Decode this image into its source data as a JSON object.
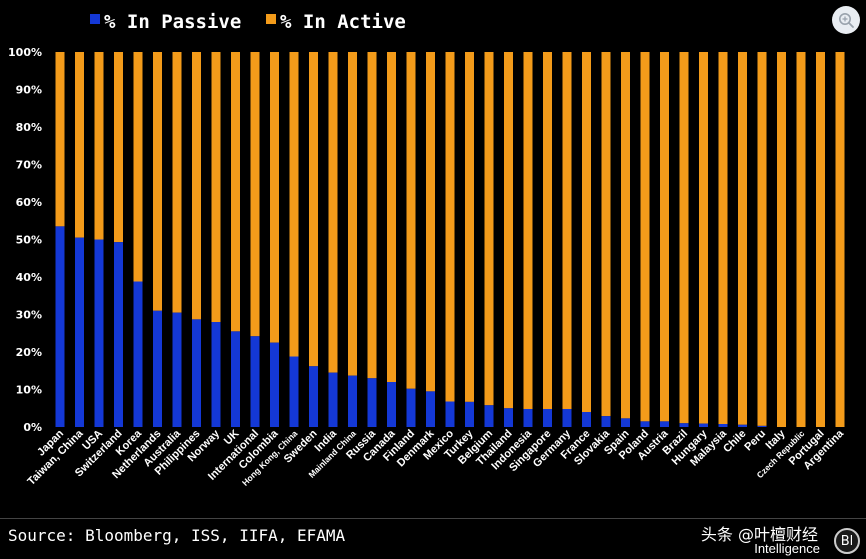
{
  "legend": {
    "passive_label": "% In Passive",
    "active_label": "% In Active"
  },
  "colors": {
    "passive": "#1438d6",
    "active": "#f39b1a",
    "background": "#000000"
  },
  "source": "Source: Bloomberg, ISS, IIFA, EFAMA",
  "watermark": "头条 @叶檀财经",
  "brand": "Intelligence",
  "brand_logo_letter": "Bl",
  "icon_names": [
    "search-zoom-icon"
  ],
  "chart_data": {
    "type": "bar",
    "stacked": true,
    "ylim": [
      0,
      100
    ],
    "yticks": [
      "0%",
      "10%",
      "20%",
      "30%",
      "40%",
      "50%",
      "60%",
      "70%",
      "80%",
      "90%",
      "100%"
    ],
    "categories": [
      "Japan",
      "Taiwan, China",
      "USA",
      "Switzerland",
      "Korea",
      "Netherlands",
      "Australia",
      "Philippines",
      "Norway",
      "UK",
      "International",
      "Colombia",
      "Hong Kong, China",
      "Sweden",
      "India",
      "Mainland China",
      "Russia",
      "Canada",
      "Finland",
      "Denmark",
      "Mexico",
      "Turkey",
      "Belgium",
      "Thailand",
      "Indonesia",
      "Singapore",
      "Germany",
      "France",
      "Slovakia",
      "Spain",
      "Poland",
      "Austria",
      "Brazil",
      "Hungary",
      "Malaysia",
      "Chile",
      "Peru",
      "Italy",
      "Czech Republic",
      "Portugal",
      "Argentina"
    ],
    "series": [
      {
        "name": "% In Passive",
        "values": [
          53.5,
          50.5,
          50,
          49.3,
          38.8,
          31,
          30.5,
          28.7,
          28,
          25.5,
          24.2,
          22.5,
          18.8,
          16.2,
          14.5,
          13.7,
          13,
          12,
          10.2,
          9.5,
          6.8,
          6.7,
          5.8,
          5,
          4.8,
          4.8,
          4.8,
          4,
          2.9,
          2.3,
          1.5,
          1.5,
          1,
          0.9,
          0.8,
          0.6,
          0.3,
          0,
          0,
          0,
          0
        ]
      },
      {
        "name": "% In Active",
        "values": [
          46.5,
          49.5,
          50,
          50.7,
          61.2,
          69,
          69.5,
          71.3,
          72,
          74.5,
          75.8,
          77.5,
          81.2,
          83.8,
          85.5,
          86.3,
          87,
          88,
          89.8,
          90.5,
          93.2,
          93.3,
          94.2,
          95,
          95.2,
          95.2,
          95.2,
          96,
          97.1,
          97.7,
          98.5,
          98.5,
          99,
          99.1,
          99.2,
          99.4,
          99.7,
          100,
          100,
          100,
          100
        ]
      }
    ]
  }
}
